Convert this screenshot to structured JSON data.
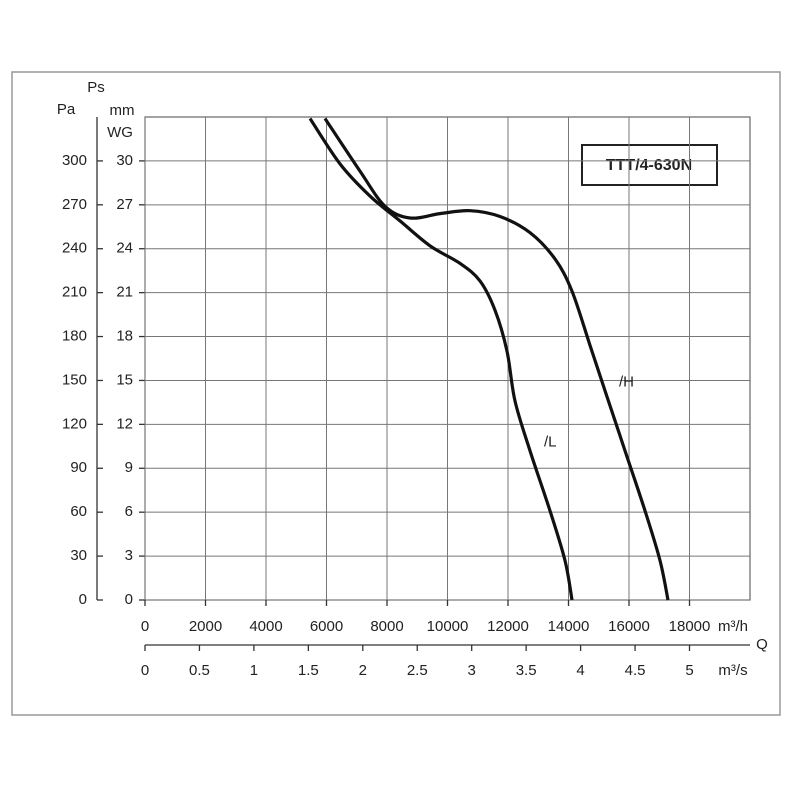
{
  "chart_data": {
    "type": "line",
    "title": "TTT/4-630N",
    "x_label": "Q",
    "x_unit": "m³/h",
    "x2_unit": "m³/s",
    "y_label": "Ps",
    "y_unit": "Pa",
    "y2_unit": [
      "mm",
      "WG"
    ],
    "xlim": [
      0,
      20000
    ],
    "xticks": [
      0,
      2000,
      4000,
      6000,
      8000,
      10000,
      12000,
      14000,
      16000,
      18000
    ],
    "x2lim": [
      0,
      5.5556
    ],
    "x2ticks": [
      0,
      0.5,
      1,
      1.5,
      2,
      2.5,
      3,
      3.5,
      4,
      4.5,
      5
    ],
    "ylim": [
      0,
      330
    ],
    "yticks": [
      0,
      30,
      60,
      90,
      120,
      150,
      180,
      210,
      240,
      270,
      300
    ],
    "y2lim": [
      0,
      33
    ],
    "y2ticks": [
      0,
      3,
      6,
      9,
      12,
      15,
      18,
      21,
      24,
      27,
      30
    ],
    "grid": true,
    "series": [
      {
        "name": "/H",
        "color": "#111111",
        "x": [
          5950,
          7107,
          7934,
          8760,
          9752,
          10744,
          11736,
          12727,
          13554,
          14116,
          14711,
          15207,
          15868,
          16529,
          17025,
          17289
        ],
        "values": [
          329,
          293,
          269,
          261,
          264,
          266,
          262,
          251,
          233,
          211,
          174,
          143,
          102,
          61,
          27,
          0
        ]
      },
      {
        "name": "/L",
        "color": "#111111",
        "x": [
          5455,
          6446,
          7438,
          8430,
          9421,
          10413,
          11074,
          11570,
          11967,
          12231,
          12727,
          13388,
          13884,
          14116
        ],
        "values": [
          329,
          298,
          276,
          259,
          242,
          230,
          218,
          198,
          170,
          136,
          102,
          61,
          27,
          0
        ]
      }
    ]
  }
}
